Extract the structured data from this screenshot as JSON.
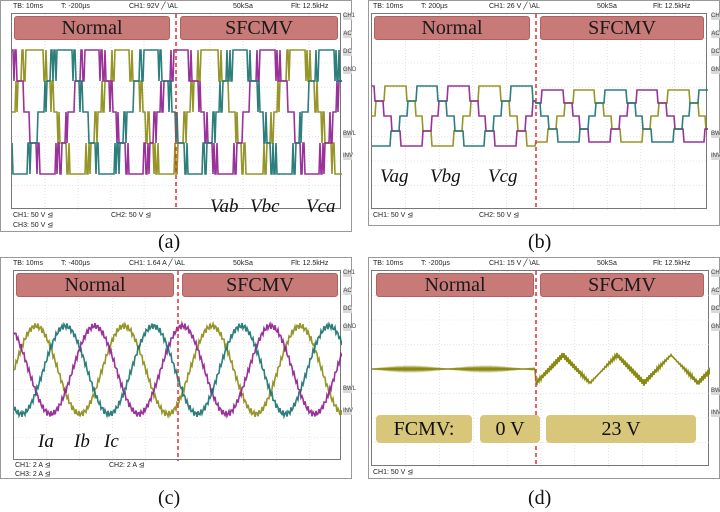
{
  "colors": {
    "a": "#8a8a12",
    "b": "#8e1d8e",
    "c": "#17706e",
    "banner": "#c77a78",
    "divider": "#e03030",
    "fcmv_box": "#d8c67a"
  },
  "panels": {
    "a": {
      "header": {
        "tb": "TB: 10ms",
        "t": "T: -200µs",
        "ch1": "CH1: 92V ╱ \\AL",
        "sa": "50kSa",
        "flt": "Flt: 12.5kHz"
      },
      "side": [
        "CH1",
        "AC",
        "DC",
        "GND",
        "BWL",
        "INV"
      ],
      "banner_left": "Normal",
      "banner_right": "SFCMV",
      "labels": [
        "Vab",
        "Vbc",
        "Vca"
      ],
      "foot": {
        "ch1": "CH1: 50 V ⊴",
        "ch2": "CH2: 50 V ⊴",
        "ch3": "CH3: 50 V ⊴"
      },
      "caption": "(a)"
    },
    "b": {
      "header": {
        "tb": "TB: 10ms",
        "t": "T: 200µs",
        "ch1": "CH1: 26 V ╱ \\AL",
        "sa": "50kSa",
        "flt": "Flt: 12.5kHz"
      },
      "side": [
        "CH1",
        "AC",
        "DC",
        "GND",
        "BWL",
        "INV"
      ],
      "banner_left": "Normal",
      "banner_right": "SFCMV",
      "labels": [
        "Vag",
        "Vbg",
        "Vcg"
      ],
      "foot": {
        "ch1": "CH1: 50 V ⊴",
        "ch2": "CH2: 50 V ⊴"
      },
      "caption": "(b)"
    },
    "c": {
      "header": {
        "tb": "TB: 10ms",
        "t": "T: -400µs",
        "ch1": "CH1: 1.64 A ╱ \\AL",
        "sa": "50kSa",
        "flt": "Flt: 12.5kHz"
      },
      "side": [
        "CH1",
        "AC",
        "DC",
        "GND",
        "BWL",
        "INV"
      ],
      "banner_left": "Normal",
      "banner_right": "SFCMV",
      "labels": [
        "Ia",
        "Ib",
        "Ic"
      ],
      "foot": {
        "ch1": "CH1: 2 A ⊴",
        "ch2": "CH2: 2 A ⊴",
        "ch3": "CH3: 2 A ⊴"
      },
      "caption": "(c)"
    },
    "d": {
      "header": {
        "tb": "TB: 10ms",
        "t": "T: -200µs",
        "ch1": "CH1: 15 V ╱ \\AL",
        "sa": "50kSa",
        "flt": "Flt: 12.5kHz"
      },
      "side": [
        "CH1",
        "AC",
        "DC",
        "GND",
        "BWL",
        "INV"
      ],
      "banner_left": "Normal",
      "banner_right": "SFCMV",
      "fcmv_label": "FCMV:",
      "normal_value": "0 V",
      "sfcmv_value": "23 V",
      "foot": {
        "ch1": "CH1: 50 V ⊴"
      },
      "caption": "(d)"
    }
  }
}
